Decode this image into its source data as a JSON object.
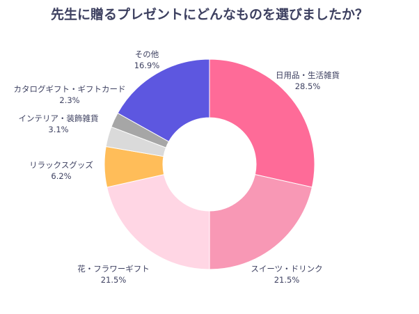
{
  "chart_data": {
    "type": "pie",
    "donut": true,
    "title": "先生に贈るプレゼントにどんなものを選びましたか？",
    "start": "12 o'clock, clockwise",
    "legend": "none (labels outside slices)",
    "slices": [
      {
        "label": "日用品・生活雑貨",
        "value": 28.5,
        "value_label": "28.5%",
        "color": "#fe6b98"
      },
      {
        "label": "スイーツ・ドリンク",
        "value": 21.5,
        "value_label": "21.5%",
        "color": "#f898b5"
      },
      {
        "label": "花・フラワーギフト",
        "value": 21.5,
        "value_label": "21.5%",
        "color": "#ffd6e4"
      },
      {
        "label": "リラックスグッズ",
        "value": 6.2,
        "value_label": "6.2%",
        "color": "#ffbd59"
      },
      {
        "label": "インテリア・装飾雑貨",
        "value": 3.1,
        "value_label": "3.1%",
        "color": "#dadada"
      },
      {
        "label": "カタログギフト・ギフトカード",
        "value": 2.3,
        "value_label": "2.3%",
        "color": "#a6a6a6"
      },
      {
        "label": "その他",
        "value": 16.9,
        "value_label": "16.9%",
        "color": "#5d57e0"
      }
    ]
  }
}
